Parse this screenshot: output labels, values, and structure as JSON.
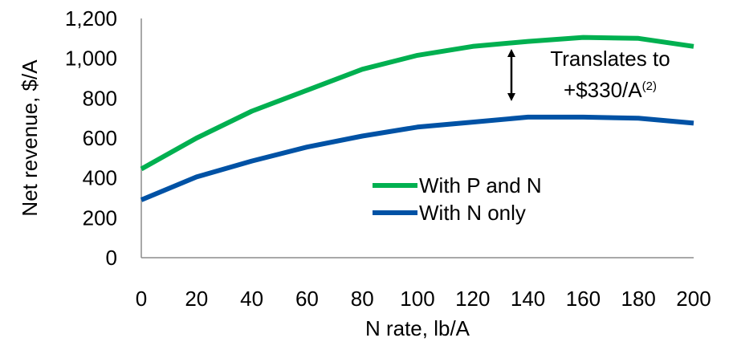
{
  "chart_data": {
    "type": "line",
    "title": "",
    "xlabel": "N rate, lb/A",
    "ylabel": "Net revenue, $/A",
    "x": [
      0,
      20,
      40,
      60,
      80,
      100,
      120,
      140,
      160,
      180,
      200
    ],
    "x_tick_labels": [
      "0",
      "20",
      "40",
      "60",
      "80",
      "100",
      "120",
      "140",
      "160",
      "180",
      "200"
    ],
    "y_tick_labels": [
      "0",
      "200",
      "400",
      "600",
      "800",
      "1,000",
      "1,200"
    ],
    "xlim": [
      0,
      200
    ],
    "ylim": [
      0,
      1200
    ],
    "grid": false,
    "legend_position": "center-right",
    "series": [
      {
        "name": "With P and N",
        "color": "#00B050",
        "values": [
          445,
          600,
          735,
          840,
          945,
          1015,
          1060,
          1085,
          1105,
          1100,
          1060
        ]
      },
      {
        "name": "With N only",
        "color": "#0052A5",
        "values": [
          290,
          405,
          485,
          555,
          610,
          655,
          680,
          705,
          705,
          700,
          675
        ]
      }
    ],
    "annotation": {
      "line1": "Translates to",
      "line2_main": "+$330/A",
      "line2_sup": "(2)",
      "arrow": "double-headed vertical",
      "arrow_color": "#000000"
    }
  }
}
